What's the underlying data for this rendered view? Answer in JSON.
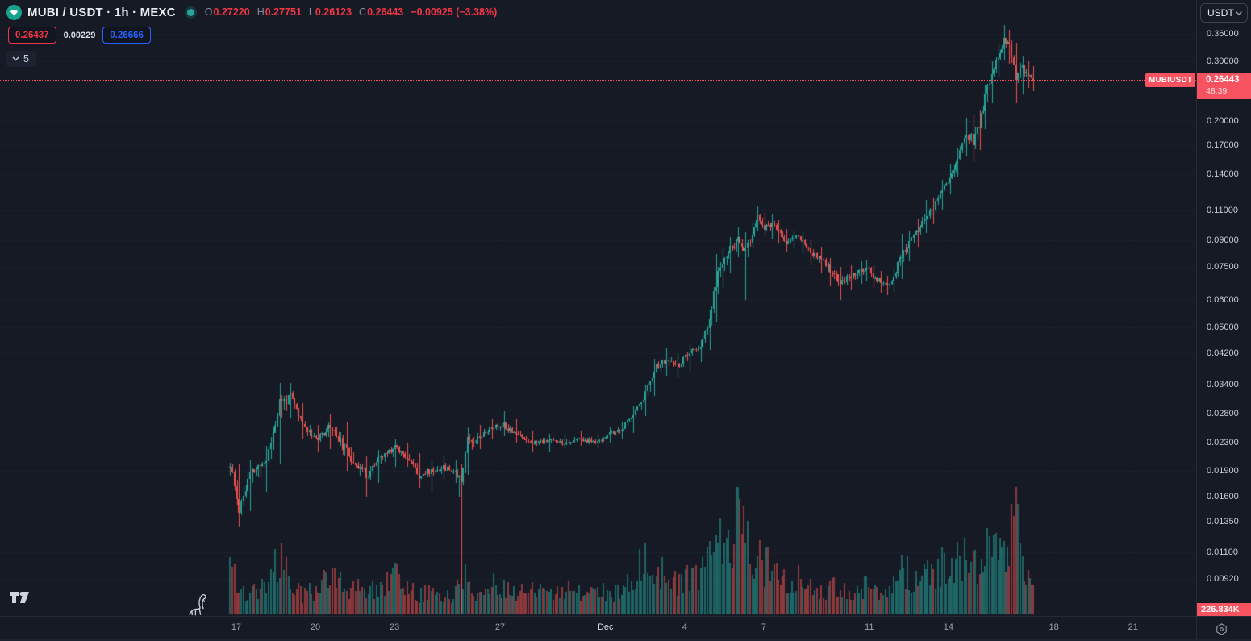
{
  "header": {
    "symbol_title": "MUBI / USDT · 1h · MEXC",
    "ohlc": {
      "o_label": "O",
      "o": "0.27220",
      "h_label": "H",
      "h": "0.27751",
      "l_label": "L",
      "l": "0.26123",
      "c_label": "C",
      "c": "0.26443",
      "change": "−0.00925 (−3.38%)"
    },
    "sell_price": "0.26437",
    "spread": "0.00229",
    "buy_price": "0.26666",
    "indicator_count": "5"
  },
  "price_axis": {
    "currency_button": "USDT",
    "ticks": [
      {
        "label": "0.36000",
        "value": 0.36
      },
      {
        "label": "0.30000",
        "value": 0.3
      },
      {
        "label": "0.20000",
        "value": 0.2
      },
      {
        "label": "0.17000",
        "value": 0.17
      },
      {
        "label": "0.14000",
        "value": 0.14
      },
      {
        "label": "0.11000",
        "value": 0.11
      },
      {
        "label": "0.09000",
        "value": 0.09
      },
      {
        "label": "0.07500",
        "value": 0.075
      },
      {
        "label": "0.06000",
        "value": 0.06
      },
      {
        "label": "0.05000",
        "value": 0.05
      },
      {
        "label": "0.04200",
        "value": 0.042
      },
      {
        "label": "0.03400",
        "value": 0.034
      },
      {
        "label": "0.02800",
        "value": 0.028
      },
      {
        "label": "0.02300",
        "value": 0.023
      },
      {
        "label": "0.01900",
        "value": 0.019
      },
      {
        "label": "0.01600",
        "value": 0.016
      },
      {
        "label": "0.01350",
        "value": 0.0135
      },
      {
        "label": "0.01100",
        "value": 0.011
      },
      {
        "label": "0.00920",
        "value": 0.0092
      }
    ],
    "price_label": {
      "symbol_badge": "MUBIUSDT",
      "price": "0.26443",
      "countdown": "48:39",
      "value": 0.26443
    },
    "volume_label": "226.834K"
  },
  "time_axis": {
    "ticks": [
      {
        "label": "17",
        "t": 9.5
      },
      {
        "label": "20",
        "t": 81.5
      },
      {
        "label": "23",
        "t": 153.5
      },
      {
        "label": "27",
        "t": 249.5
      },
      {
        "label": "Dec",
        "t": 345.5
      },
      {
        "label": "4",
        "t": 417.5
      },
      {
        "label": "7",
        "t": 489.5
      },
      {
        "label": "11",
        "t": 585.5
      },
      {
        "label": "14",
        "t": 657.5
      },
      {
        "label": "18",
        "t": 753.5
      },
      {
        "label": "21",
        "t": 825.5
      }
    ]
  },
  "chart_data": {
    "type": "candlestick",
    "symbol": "MUBI/USDT",
    "interval": "1h",
    "exchange": "MEXC",
    "scale": "log",
    "title": "MUBI / USDT · 1h · MEXC",
    "last_price": 0.26443,
    "last_open": 0.2722,
    "ylim": [
      0.0073,
      0.39
    ],
    "y_ticks": [
      0.36,
      0.3,
      0.2,
      0.17,
      0.14,
      0.11,
      0.09,
      0.075,
      0.06,
      0.05,
      0.042,
      0.034,
      0.028,
      0.023,
      0.019,
      0.016,
      0.0135,
      0.011,
      0.0092
    ],
    "x_tick_labels": [
      "17",
      "20",
      "23",
      "27",
      "Dec",
      "4",
      "7",
      "11",
      "14",
      "18",
      "21"
    ],
    "anchors_format": "[hours_from_chart_start, close, high_envelope, low_envelope, volume_bar_rel]",
    "anchors": [
      [
        2,
        0.021,
        0.0235,
        0.0155,
        75
      ],
      [
        12,
        0.0148,
        0.02,
        0.0131,
        30
      ],
      [
        22,
        0.0185,
        0.0205,
        0.0145,
        25
      ],
      [
        37,
        0.0205,
        0.0225,
        0.0165,
        40
      ],
      [
        49,
        0.03,
        0.0345,
        0.02,
        70
      ],
      [
        59,
        0.0315,
        0.0345,
        0.027,
        35
      ],
      [
        70,
        0.026,
        0.03,
        0.0235,
        25
      ],
      [
        84,
        0.0235,
        0.026,
        0.0215,
        30
      ],
      [
        95,
        0.026,
        0.028,
        0.022,
        55
      ],
      [
        110,
        0.0215,
        0.0265,
        0.019,
        30
      ],
      [
        128,
        0.0185,
        0.021,
        0.016,
        35
      ],
      [
        139,
        0.0205,
        0.022,
        0.0175,
        25
      ],
      [
        154,
        0.0225,
        0.0235,
        0.0195,
        50
      ],
      [
        165,
        0.021,
        0.023,
        0.0195,
        30
      ],
      [
        176,
        0.0185,
        0.0215,
        0.017,
        25
      ],
      [
        187,
        0.019,
        0.0205,
        0.0165,
        30
      ],
      [
        198,
        0.0195,
        0.021,
        0.018,
        20
      ],
      [
        209,
        0.019,
        0.0205,
        0.0175,
        25
      ],
      [
        214,
        0.019,
        0.02,
        0.0073,
        60
      ],
      [
        220,
        0.0235,
        0.0255,
        0.0185,
        35
      ],
      [
        231,
        0.024,
        0.026,
        0.022,
        25
      ],
      [
        242,
        0.0255,
        0.027,
        0.0235,
        40
      ],
      [
        253,
        0.026,
        0.0285,
        0.024,
        35
      ],
      [
        264,
        0.0245,
        0.027,
        0.023,
        25
      ],
      [
        279,
        0.023,
        0.025,
        0.0215,
        30
      ],
      [
        294,
        0.0235,
        0.0245,
        0.0215,
        25
      ],
      [
        308,
        0.023,
        0.0245,
        0.022,
        30
      ],
      [
        323,
        0.0235,
        0.025,
        0.0225,
        25
      ],
      [
        338,
        0.023,
        0.0245,
        0.022,
        30
      ],
      [
        349,
        0.0245,
        0.0255,
        0.023,
        25
      ],
      [
        360,
        0.025,
        0.0265,
        0.0235,
        30
      ],
      [
        371,
        0.028,
        0.0295,
        0.0245,
        45
      ],
      [
        382,
        0.032,
        0.034,
        0.0275,
        70
      ],
      [
        390,
        0.038,
        0.0405,
        0.0315,
        60
      ],
      [
        401,
        0.04,
        0.0435,
        0.036,
        45
      ],
      [
        411,
        0.0385,
        0.042,
        0.0355,
        40
      ],
      [
        422,
        0.042,
        0.0445,
        0.037,
        50
      ],
      [
        432,
        0.044,
        0.046,
        0.0395,
        45
      ],
      [
        440,
        0.052,
        0.056,
        0.043,
        80
      ],
      [
        446,
        0.068,
        0.082,
        0.052,
        120
      ],
      [
        452,
        0.078,
        0.085,
        0.065,
        90
      ],
      [
        459,
        0.085,
        0.092,
        0.072,
        75
      ],
      [
        466,
        0.09,
        0.098,
        0.08,
        140
      ],
      [
        473,
        0.082,
        0.095,
        0.06,
        95
      ],
      [
        479,
        0.095,
        0.102,
        0.085,
        80
      ],
      [
        484,
        0.105,
        0.113,
        0.095,
        70
      ],
      [
        490,
        0.098,
        0.108,
        0.092,
        60
      ],
      [
        497,
        0.1,
        0.107,
        0.09,
        55
      ],
      [
        503,
        0.095,
        0.103,
        0.088,
        50
      ],
      [
        510,
        0.089,
        0.097,
        0.083,
        45
      ],
      [
        517,
        0.092,
        0.096,
        0.085,
        40
      ],
      [
        525,
        0.09,
        0.095,
        0.082,
        45
      ],
      [
        532,
        0.082,
        0.09,
        0.076,
        35
      ],
      [
        542,
        0.08,
        0.086,
        0.072,
        30
      ],
      [
        550,
        0.073,
        0.08,
        0.066,
        35
      ],
      [
        559,
        0.068,
        0.075,
        0.06,
        30
      ],
      [
        569,
        0.071,
        0.076,
        0.064,
        25
      ],
      [
        578,
        0.073,
        0.078,
        0.067,
        30
      ],
      [
        583,
        0.075,
        0.079,
        0.068,
        35
      ],
      [
        589,
        0.07,
        0.076,
        0.065,
        25
      ],
      [
        596,
        0.068,
        0.073,
        0.063,
        30
      ],
      [
        602,
        0.066,
        0.071,
        0.062,
        25
      ],
      [
        608,
        0.07,
        0.074,
        0.063,
        40
      ],
      [
        615,
        0.082,
        0.094,
        0.069,
        65
      ],
      [
        622,
        0.088,
        0.096,
        0.078,
        45
      ],
      [
        630,
        0.096,
        0.104,
        0.086,
        50
      ],
      [
        637,
        0.105,
        0.118,
        0.094,
        55
      ],
      [
        644,
        0.112,
        0.12,
        0.1,
        45
      ],
      [
        652,
        0.125,
        0.135,
        0.11,
        60
      ],
      [
        659,
        0.138,
        0.15,
        0.122,
        55
      ],
      [
        666,
        0.155,
        0.168,
        0.138,
        65
      ],
      [
        674,
        0.185,
        0.205,
        0.158,
        70
      ],
      [
        680,
        0.175,
        0.21,
        0.152,
        60
      ],
      [
        686,
        0.195,
        0.215,
        0.165,
        55
      ],
      [
        691,
        0.235,
        0.255,
        0.19,
        75
      ],
      [
        697,
        0.28,
        0.3,
        0.225,
        80
      ],
      [
        703,
        0.31,
        0.34,
        0.27,
        70
      ],
      [
        708,
        0.345,
        0.383,
        0.3,
        90
      ],
      [
        713,
        0.33,
        0.37,
        0.295,
        75
      ],
      [
        719,
        0.27,
        0.34,
        0.226,
        155
      ],
      [
        725,
        0.285,
        0.31,
        0.24,
        60
      ],
      [
        730,
        0.275,
        0.3,
        0.25,
        45
      ],
      [
        735,
        0.26443,
        0.29,
        0.245,
        30
      ]
    ]
  },
  "colors": {
    "background": "#151a25",
    "up": "#26a69a",
    "down": "#ef5350",
    "text_red": "#f23645",
    "label_red_bg": "#f7525f",
    "buy_blue": "#2962ff",
    "axis_text": "#c9ccd6",
    "separator": "#262b38"
  }
}
